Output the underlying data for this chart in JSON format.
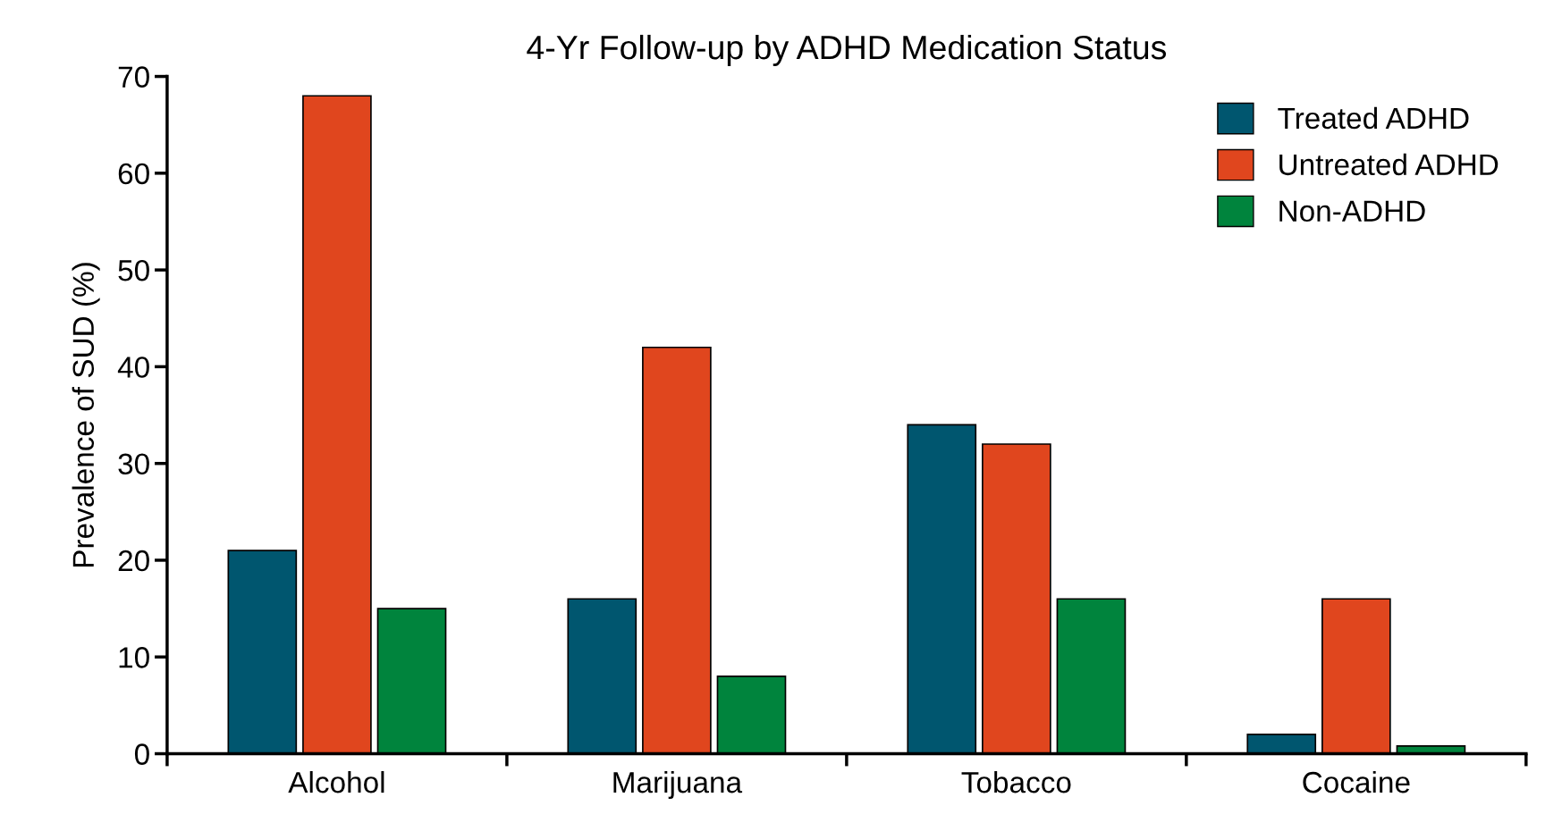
{
  "chart_data": {
    "type": "bar",
    "title": "4-Yr Follow-up by ADHD Medication Status",
    "ylabel": "Prevalence of SUD (%)",
    "categories": [
      "Alcohol",
      "Marijuana",
      "Tobacco",
      "Cocaine"
    ],
    "series": [
      {
        "name": "Treated ADHD",
        "color": "#00566f",
        "values": [
          21,
          16,
          34,
          2
        ]
      },
      {
        "name": "Untreated ADHD",
        "color": "#e0461e",
        "values": [
          68,
          42,
          32,
          16
        ]
      },
      {
        "name": "Non-ADHD",
        "color": "#00843d",
        "values": [
          15,
          8,
          16,
          0.8
        ]
      }
    ],
    "ylim": [
      0,
      70
    ],
    "yticks": [
      0,
      10,
      20,
      30,
      40,
      50,
      60,
      70
    ],
    "legend": "top right",
    "grid": false
  }
}
